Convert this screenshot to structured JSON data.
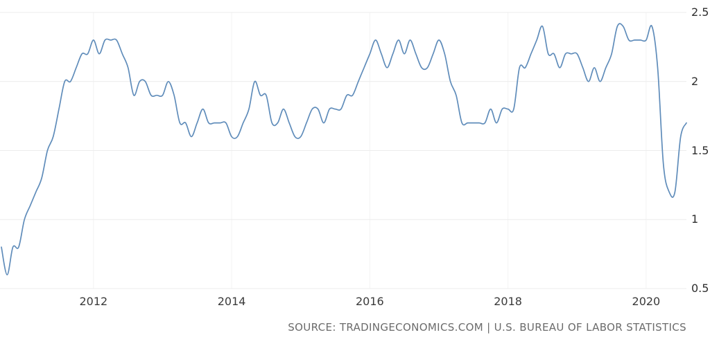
{
  "chart_data": {
    "type": "line",
    "title": "",
    "x": [
      "2010-09",
      "2010-10",
      "2010-11",
      "2010-12",
      "2011-01",
      "2011-02",
      "2011-03",
      "2011-04",
      "2011-05",
      "2011-06",
      "2011-07",
      "2011-08",
      "2011-09",
      "2011-10",
      "2011-11",
      "2011-12",
      "2012-01",
      "2012-02",
      "2012-03",
      "2012-04",
      "2012-05",
      "2012-06",
      "2012-07",
      "2012-08",
      "2012-09",
      "2012-10",
      "2012-11",
      "2012-12",
      "2013-01",
      "2013-02",
      "2013-03",
      "2013-04",
      "2013-05",
      "2013-06",
      "2013-07",
      "2013-08",
      "2013-09",
      "2013-10",
      "2013-11",
      "2013-12",
      "2014-01",
      "2014-02",
      "2014-03",
      "2014-04",
      "2014-05",
      "2014-06",
      "2014-07",
      "2014-08",
      "2014-09",
      "2014-10",
      "2014-11",
      "2014-12",
      "2015-01",
      "2015-02",
      "2015-03",
      "2015-04",
      "2015-05",
      "2015-06",
      "2015-07",
      "2015-08",
      "2015-09",
      "2015-10",
      "2015-11",
      "2015-12",
      "2016-01",
      "2016-02",
      "2016-03",
      "2016-04",
      "2016-05",
      "2016-06",
      "2016-07",
      "2016-08",
      "2016-09",
      "2016-10",
      "2016-11",
      "2016-12",
      "2017-01",
      "2017-02",
      "2017-03",
      "2017-04",
      "2017-05",
      "2017-06",
      "2017-07",
      "2017-08",
      "2017-09",
      "2017-10",
      "2017-11",
      "2017-12",
      "2018-01",
      "2018-02",
      "2018-03",
      "2018-04",
      "2018-05",
      "2018-06",
      "2018-07",
      "2018-08",
      "2018-09",
      "2018-10",
      "2018-11",
      "2018-12",
      "2019-01",
      "2019-02",
      "2019-03",
      "2019-04",
      "2019-05",
      "2019-06",
      "2019-07",
      "2019-08",
      "2019-09",
      "2019-10",
      "2019-11",
      "2019-12",
      "2020-01",
      "2020-02",
      "2020-03",
      "2020-04",
      "2020-05",
      "2020-06",
      "2020-07",
      "2020-08"
    ],
    "values": [
      0.8,
      0.6,
      0.8,
      0.8,
      1.0,
      1.1,
      1.2,
      1.3,
      1.5,
      1.6,
      1.8,
      2.0,
      2.0,
      2.1,
      2.2,
      2.2,
      2.3,
      2.2,
      2.3,
      2.3,
      2.3,
      2.2,
      2.1,
      1.9,
      2.0,
      2.0,
      1.9,
      1.9,
      1.9,
      2.0,
      1.9,
      1.7,
      1.7,
      1.6,
      1.7,
      1.8,
      1.7,
      1.7,
      1.7,
      1.7,
      1.6,
      1.6,
      1.7,
      1.8,
      2.0,
      1.9,
      1.9,
      1.7,
      1.7,
      1.8,
      1.7,
      1.6,
      1.6,
      1.7,
      1.8,
      1.8,
      1.7,
      1.8,
      1.8,
      1.8,
      1.9,
      1.9,
      2.0,
      2.1,
      2.2,
      2.3,
      2.2,
      2.1,
      2.2,
      2.3,
      2.2,
      2.3,
      2.2,
      2.1,
      2.1,
      2.2,
      2.3,
      2.2,
      2.0,
      1.9,
      1.7,
      1.7,
      1.7,
      1.7,
      1.7,
      1.8,
      1.7,
      1.8,
      1.8,
      1.8,
      2.1,
      2.1,
      2.2,
      2.3,
      2.4,
      2.2,
      2.2,
      2.1,
      2.2,
      2.2,
      2.2,
      2.1,
      2.0,
      2.1,
      2.0,
      2.1,
      2.2,
      2.4,
      2.4,
      2.3,
      2.3,
      2.3,
      2.3,
      2.4,
      2.1,
      1.4,
      1.2,
      1.2,
      1.6,
      1.7
    ],
    "ylim": [
      0.5,
      2.5
    ],
    "y_ticks": [
      0.5,
      1,
      1.5,
      2,
      2.5
    ],
    "y_tick_labels": [
      "0.5",
      "1",
      "1.5",
      "2",
      "2.5"
    ],
    "x_tick_labels": [
      "2012",
      "2014",
      "2016",
      "2018",
      "2020"
    ],
    "x_tick_indices": [
      16,
      40,
      64,
      88,
      112
    ],
    "grid": true,
    "legend": "none",
    "line_color": "#5f8cba"
  },
  "source": {
    "text": "SOURCE: TRADINGECONOMICS.COM | U.S. BUREAU OF LABOR STATISTICS"
  }
}
